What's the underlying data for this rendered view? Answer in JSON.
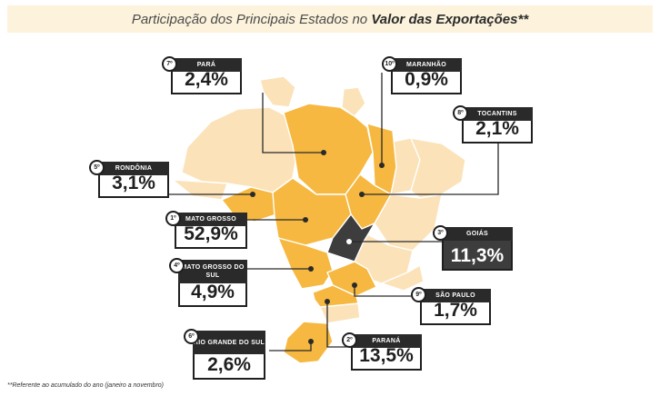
{
  "title": {
    "prefix": "Participação dos Principais Estados no ",
    "bold": "Valor das Exportações**"
  },
  "footnote": "**Referente ao acumulado do ano (janeiro a novembro)",
  "colors": {
    "highlight": "#f6b840",
    "light": "#fbe2b8",
    "dark": "#3d3d3d",
    "border": "#ffffff"
  },
  "states": [
    {
      "rank": "1º",
      "name": "MATO GROSSO",
      "value": "52,9%"
    },
    {
      "rank": "2º",
      "name": "PARANÁ",
      "value": "13,5%"
    },
    {
      "rank": "3º",
      "name": "GOIÁS",
      "value": "11,3%"
    },
    {
      "rank": "4º",
      "name": "MATO GROSSO DO SUL",
      "value": "4,9%"
    },
    {
      "rank": "5º",
      "name": "RONDÔNIA",
      "value": "3,1%"
    },
    {
      "rank": "6º",
      "name": "RIO GRANDE DO SUL",
      "value": "2,6%"
    },
    {
      "rank": "7º",
      "name": "PARÁ",
      "value": "2,4%"
    },
    {
      "rank": "8º",
      "name": "TOCANTINS",
      "value": "2,1%"
    },
    {
      "rank": "9º",
      "name": "SÃO PAULO",
      "value": "1,7%"
    },
    {
      "rank": "10º",
      "name": "MARANHÃO",
      "value": "0,9%"
    }
  ]
}
